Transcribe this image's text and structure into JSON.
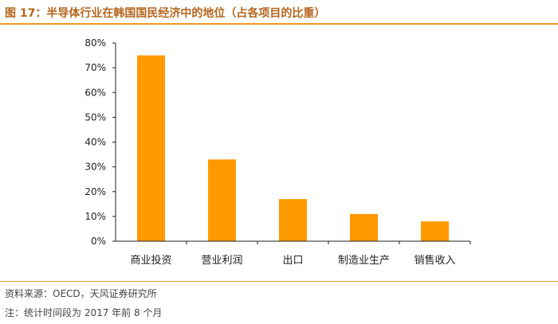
{
  "header": {
    "title": "图 17：半导体行业在韩国国民经济中的地位（占各项目的比重）"
  },
  "footer": {
    "source": "资料来源：OECD，天风证券研究所",
    "note": "注：统计时间段为 2017 年前 8 个月"
  },
  "colors": {
    "bar": "#FF9900",
    "accent_rule": "#F29A1F",
    "title": "#B5651D",
    "axis": "#222222"
  },
  "chart_data": {
    "type": "bar",
    "categories": [
      "商业投资",
      "营业利润",
      "出口",
      "制造业生产",
      "销售收入"
    ],
    "values": [
      75,
      33,
      17,
      11,
      8
    ],
    "y_ticks": [
      "0%",
      "10%",
      "20%",
      "30%",
      "40%",
      "50%",
      "60%",
      "70%",
      "80%"
    ],
    "ylim": [
      0,
      80
    ],
    "grid": false,
    "legend": false
  }
}
